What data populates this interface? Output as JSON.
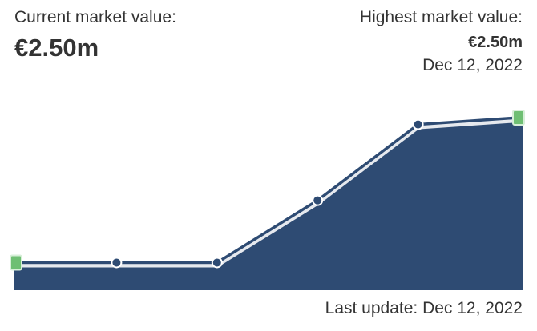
{
  "current_label": "Current market value:",
  "current_value": "€2.50m",
  "highest_label": "Highest market value:",
  "highest_value": "€2.50m",
  "highest_date": "Dec 12, 2022",
  "last_update": "Last update: Dec 12, 2022",
  "chart_data": {
    "type": "area",
    "categories": [
      null,
      null,
      null,
      null,
      null,
      null
    ],
    "values": [
      0.4,
      0.4,
      0.4,
      1.3,
      2.4,
      2.5
    ],
    "color": "#2e4b73"
  }
}
